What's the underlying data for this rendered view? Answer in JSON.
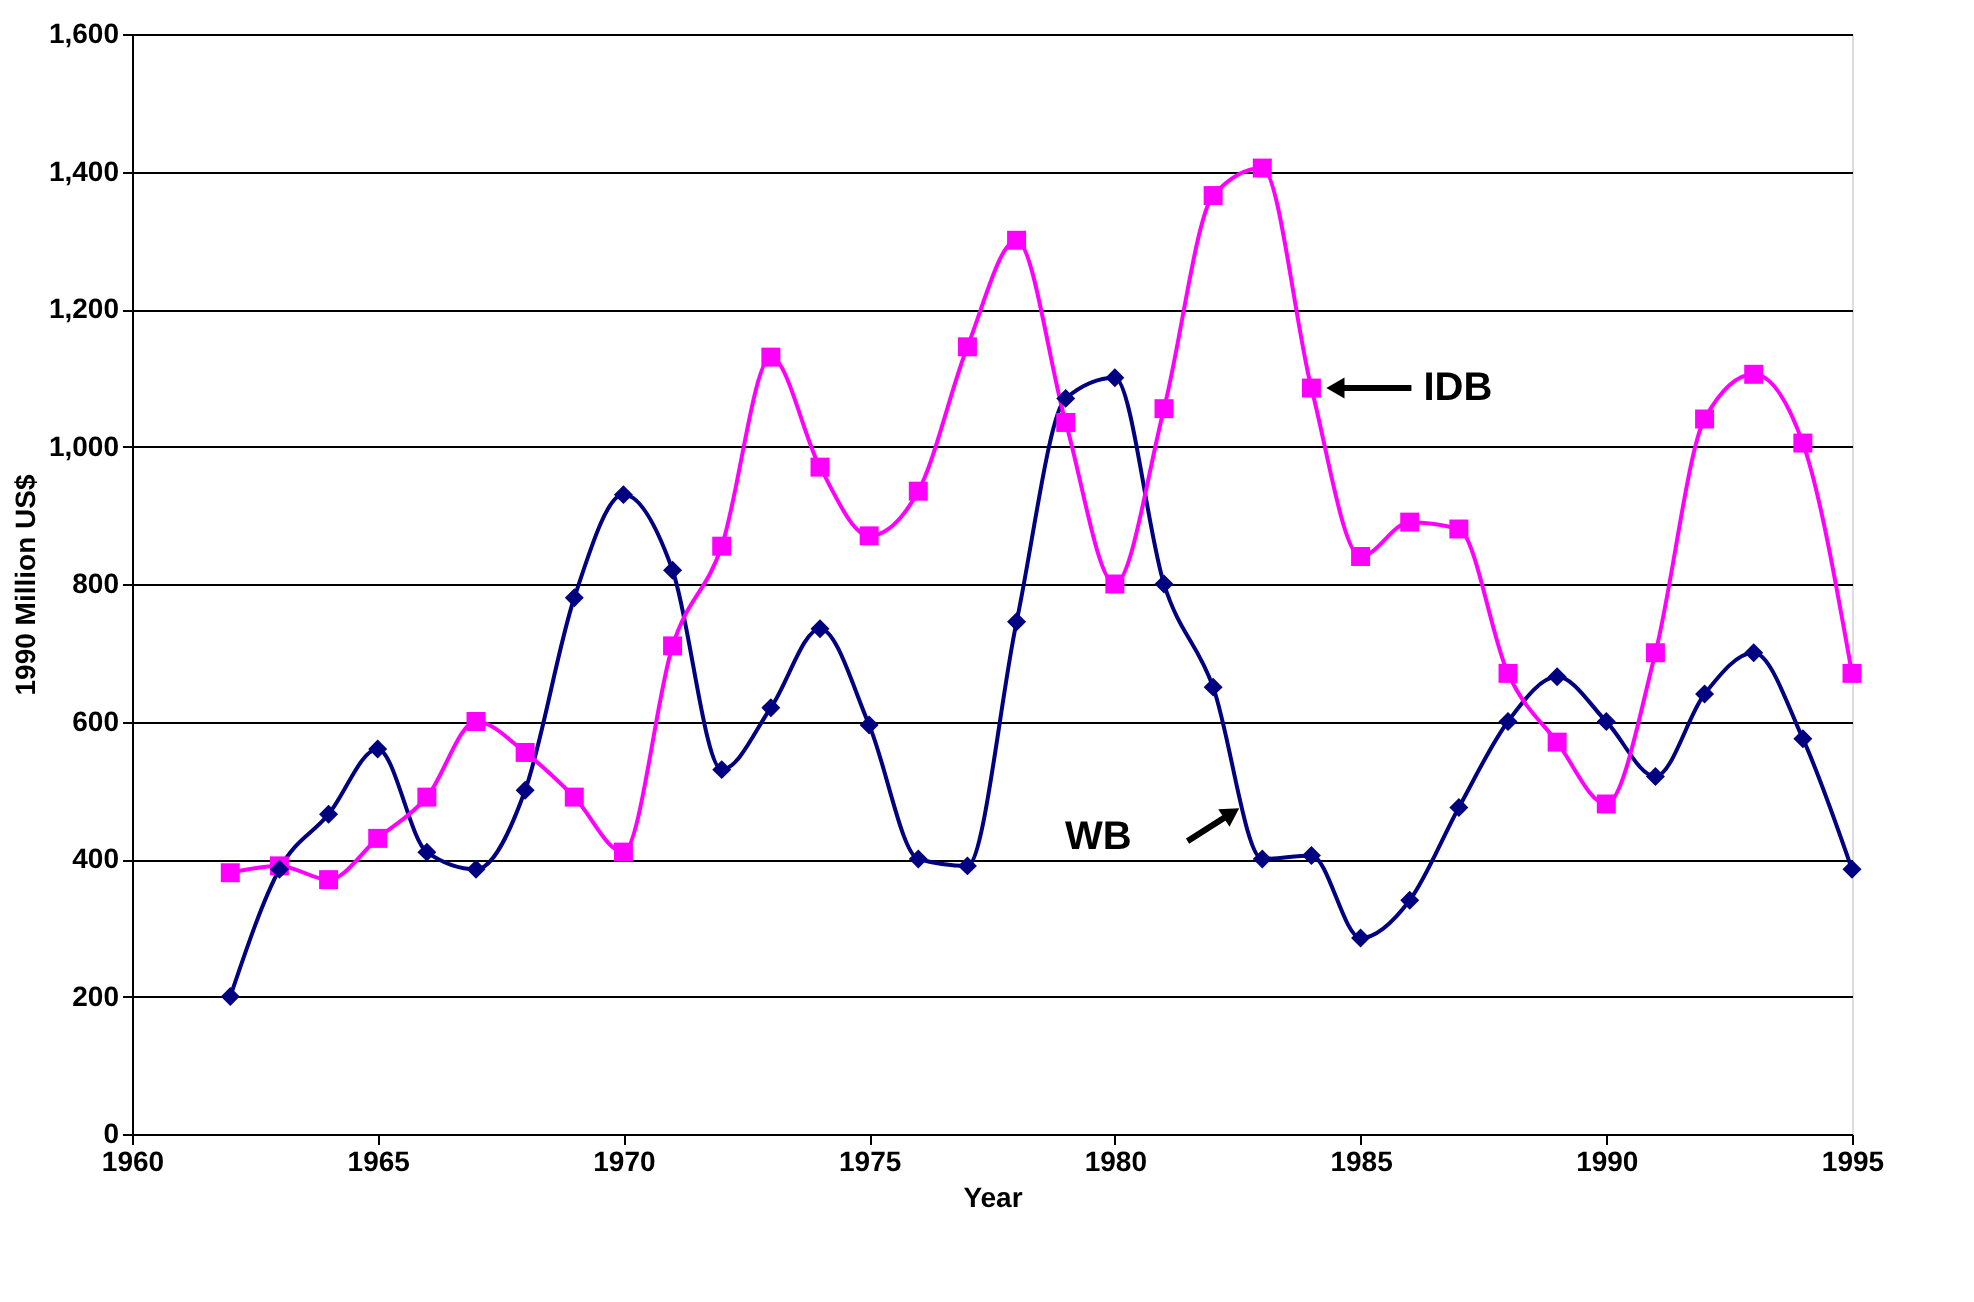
{
  "chart_data": {
    "type": "line",
    "xlabel": "Year",
    "ylabel": "1990 Million US$",
    "x": [
      1962,
      1963,
      1964,
      1965,
      1966,
      1967,
      1968,
      1969,
      1970,
      1971,
      1972,
      1973,
      1974,
      1975,
      1976,
      1977,
      1978,
      1979,
      1980,
      1981,
      1982,
      1983,
      1984,
      1985,
      1986,
      1987,
      1988,
      1989,
      1990,
      1991,
      1992,
      1993,
      1994,
      1995
    ],
    "series": [
      {
        "color": "#000080",
        "marker": "diamond",
        "values": [
          200,
          385,
          465,
          560,
          410,
          385,
          500,
          780,
          930,
          820,
          530,
          620,
          735,
          595,
          400,
          390,
          745,
          1070,
          1100,
          800,
          650,
          400,
          405,
          285,
          340,
          475,
          600,
          665,
          600,
          520,
          640,
          700,
          575,
          385
        ]
      },
      {
        "color": "#ff00ff",
        "marker": "square",
        "values": [
          380,
          390,
          370,
          430,
          490,
          600,
          555,
          490,
          410,
          710,
          855,
          1130,
          970,
          870,
          935,
          1145,
          1300,
          1035,
          800,
          1055,
          1365,
          1405,
          1085,
          840,
          890,
          880,
          670,
          570,
          480,
          700,
          1040,
          1105,
          1005,
          670
        ]
      }
    ],
    "annotations": [
      {
        "text": "IDB",
        "x": 1984,
        "y": 1085
      },
      {
        "text": "WB",
        "x": 1982.7,
        "y": 490
      }
    ],
    "xlim": [
      1960,
      1995
    ],
    "xticks": [
      1960,
      1965,
      1970,
      1975,
      1980,
      1985,
      1990,
      1995
    ],
    "ylim": [
      0,
      1600
    ],
    "yticks": [
      0,
      200,
      400,
      600,
      800,
      {
        "value": 1000,
        "label": "1,000"
      },
      {
        "value": 1200,
        "label": "1,200"
      },
      {
        "value": 1400,
        "label": "1,400"
      },
      {
        "value": 1600,
        "label": "1,600"
      }
    ],
    "grid": "y",
    "legend": false,
    "line_style": "solid"
  }
}
